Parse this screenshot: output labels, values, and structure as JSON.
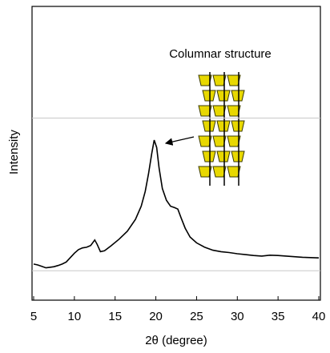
{
  "chart_data": {
    "type": "line",
    "annotation": "Columnar structure",
    "x_label": "2θ (degree)",
    "y_label": "Intensity",
    "xlim": [
      5,
      40
    ],
    "xticks": [
      5,
      10,
      15,
      20,
      25,
      30,
      35,
      40
    ],
    "ylim": [
      0,
      100
    ],
    "yticks": [
      10,
      62
    ],
    "grid": true,
    "series": [
      {
        "color": "#000000",
        "x": [
          5,
          5.5,
          6,
          6.5,
          7,
          7.5,
          8,
          8.5,
          9,
          9.5,
          10,
          10.5,
          11,
          11.5,
          12,
          12.5,
          12.8,
          13.2,
          13.7,
          14.5,
          15.5,
          16.5,
          17.5,
          18.2,
          18.7,
          19.1,
          19.5,
          19.8,
          20.1,
          20.4,
          20.8,
          21.3,
          21.8,
          22.3,
          22.7,
          23.1,
          23.6,
          24.2,
          25,
          26,
          27,
          28,
          29,
          30,
          31,
          32,
          33,
          34,
          35,
          36,
          37,
          38,
          39,
          40
        ],
        "values": [
          12.3,
          12.0,
          11.5,
          11.0,
          11.2,
          11.4,
          11.8,
          12.3,
          13.0,
          14.5,
          16.0,
          17.2,
          17.8,
          18.0,
          18.6,
          20.5,
          19.0,
          16.5,
          16.8,
          18.5,
          20.8,
          23.5,
          27.5,
          32,
          37,
          43,
          50,
          54.5,
          52,
          45,
          38,
          34,
          32,
          31.5,
          31,
          28,
          24.5,
          21.5,
          19.5,
          18,
          17,
          16.5,
          16.2,
          15.8,
          15.5,
          15.2,
          15.0,
          15.3,
          15.2,
          15.0,
          14.8,
          14.6,
          14.5,
          14.4
        ]
      }
    ]
  }
}
